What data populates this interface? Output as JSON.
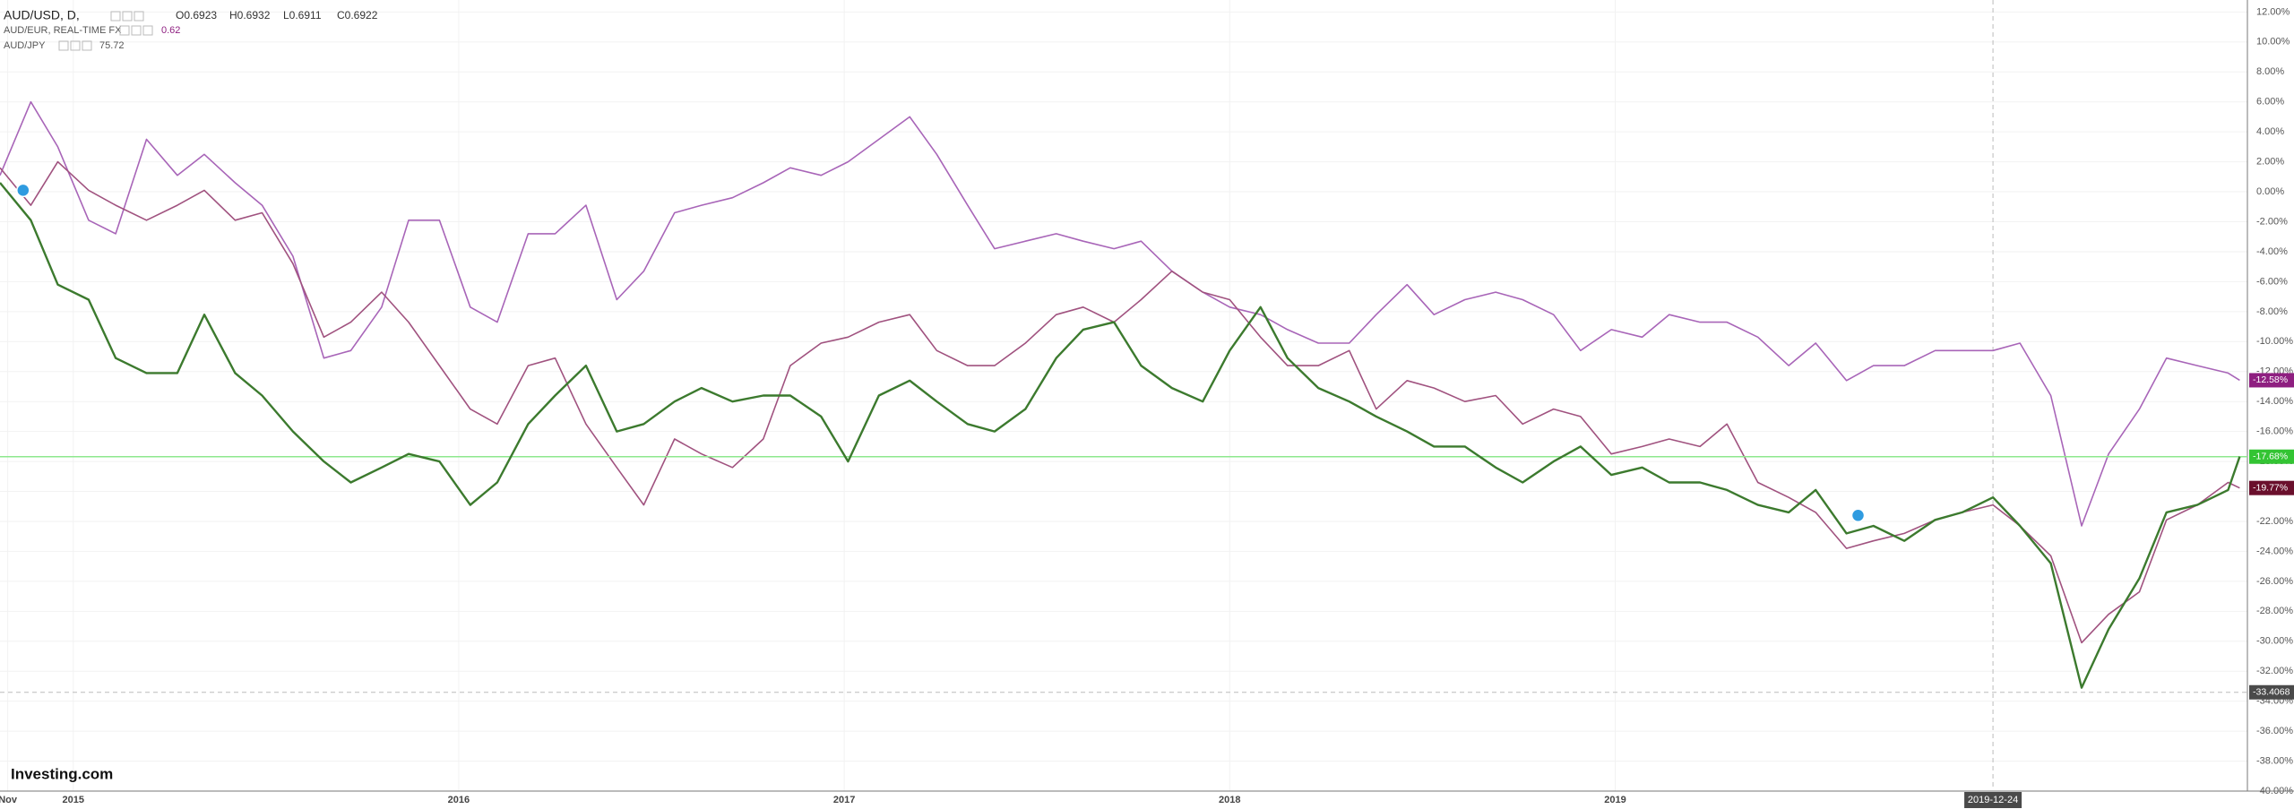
{
  "chart_data": {
    "type": "line",
    "header": {
      "ohlc": [
        "O0.6923",
        "H0.6932",
        "L0.6911",
        "C0.6922"
      ]
    },
    "logo": "Investing.com",
    "x": [
      2014.81,
      2014.89,
      2014.96,
      2015.04,
      2015.11,
      2015.19,
      2015.27,
      2015.34,
      2015.42,
      2015.49,
      2015.57,
      2015.65,
      2015.72,
      2015.8,
      2015.87,
      2015.95,
      2016.03,
      2016.1,
      2016.18,
      2016.25,
      2016.33,
      2016.41,
      2016.48,
      2016.56,
      2016.63,
      2016.71,
      2016.79,
      2016.86,
      2016.94,
      2017.01,
      2017.09,
      2017.17,
      2017.24,
      2017.32,
      2017.39,
      2017.47,
      2017.55,
      2017.62,
      2017.7,
      2017.77,
      2017.85,
      2017.93,
      2018.0,
      2018.08,
      2018.15,
      2018.23,
      2018.31,
      2018.38,
      2018.46,
      2018.53,
      2018.61,
      2018.69,
      2018.76,
      2018.84,
      2018.91,
      2018.99,
      2019.07,
      2019.14,
      2019.22,
      2019.29,
      2019.37,
      2019.45,
      2019.52,
      2019.6,
      2019.67,
      2019.75,
      2019.83,
      2019.9,
      2019.98,
      2020.05,
      2020.13,
      2020.21,
      2020.28,
      2020.36,
      2020.43,
      2020.51,
      2020.59,
      2020.62
    ],
    "series": [
      {
        "name": "AUD/USD, D,",
        "color": "#3c7a2e",
        "badge_color": "#33c433",
        "last_label": "-17.68%",
        "price_line": true,
        "values": [
          0.6,
          -1.9,
          -6.2,
          -7.2,
          -11.1,
          -12.1,
          -12.1,
          -8.2,
          -12.1,
          -13.6,
          -16.0,
          -18.0,
          -19.4,
          -18.4,
          -17.5,
          -18.0,
          -20.9,
          -19.4,
          -15.5,
          -13.6,
          -11.6,
          -16.0,
          -15.5,
          -14.0,
          -13.1,
          -14.0,
          -13.6,
          -13.6,
          -15.0,
          -18.0,
          -13.6,
          -12.6,
          -14.0,
          -15.5,
          -16.0,
          -14.5,
          -11.1,
          -9.2,
          -8.7,
          -11.6,
          -13.1,
          -14.0,
          -10.6,
          -7.7,
          -11.1,
          -13.1,
          -14.0,
          -15.0,
          -16.0,
          -17.0,
          -17.0,
          -18.4,
          -19.4,
          -18.0,
          -17.0,
          -18.9,
          -18.4,
          -19.4,
          -19.4,
          -19.9,
          -20.9,
          -21.4,
          -19.9,
          -22.8,
          -22.3,
          -23.3,
          -21.9,
          -21.4,
          -20.4,
          -22.3,
          -24.8,
          -33.1,
          -29.2,
          -25.8,
          -21.4,
          -20.9,
          -19.9,
          -17.68
        ]
      },
      {
        "name": "AUD/EUR, REAL-TIME FX",
        "color": "#a865b8",
        "badge_color": "#8e1f80",
        "last_label": "-12.58%",
        "last_price": 0.62,
        "values": [
          1.1,
          6.0,
          3.0,
          -1.9,
          -2.8,
          3.5,
          1.1,
          2.5,
          0.6,
          -0.9,
          -4.3,
          -11.1,
          -10.6,
          -7.7,
          -1.9,
          -1.9,
          -7.7,
          -8.7,
          -2.8,
          -2.8,
          -0.9,
          -7.2,
          -5.3,
          -1.4,
          -0.9,
          -0.4,
          0.6,
          1.6,
          1.1,
          2.0,
          3.5,
          5.0,
          2.5,
          -0.9,
          -3.8,
          -3.3,
          -2.8,
          -3.3,
          -3.8,
          -3.3,
          -5.3,
          -6.7,
          -7.7,
          -8.2,
          -9.2,
          -10.1,
          -10.1,
          -8.2,
          -6.2,
          -8.2,
          -7.2,
          -6.7,
          -7.2,
          -8.2,
          -10.6,
          -9.2,
          -9.7,
          -8.2,
          -8.7,
          -8.7,
          -9.7,
          -11.6,
          -10.1,
          -12.6,
          -11.6,
          -11.6,
          -10.6,
          -10.6,
          -10.6,
          -10.1,
          -13.6,
          -22.3,
          -17.5,
          -14.5,
          -11.1,
          -11.6,
          -12.1,
          -12.58
        ]
      },
      {
        "name": "AUD/JPY",
        "color": "#a0527f",
        "badge_color": "#6a0f2c",
        "last_label": "-19.77%",
        "last_price": 75.72,
        "values": [
          1.6,
          -0.9,
          2.0,
          0.1,
          -0.9,
          -1.9,
          -0.9,
          0.1,
          -1.9,
          -1.4,
          -4.8,
          -9.7,
          -8.7,
          -6.7,
          -8.7,
          -11.6,
          -14.5,
          -15.5,
          -11.6,
          -11.1,
          -15.5,
          -18.4,
          -20.9,
          -16.5,
          -17.5,
          -18.4,
          -16.5,
          -11.6,
          -10.1,
          -9.7,
          -8.7,
          -8.2,
          -10.6,
          -11.6,
          -11.6,
          -10.1,
          -8.2,
          -7.7,
          -8.7,
          -7.2,
          -5.3,
          -6.7,
          -7.2,
          -9.7,
          -11.6,
          -11.6,
          -10.6,
          -14.5,
          -12.6,
          -13.1,
          -14.0,
          -13.6,
          -15.5,
          -14.5,
          -15.0,
          -17.5,
          -17.0,
          -16.5,
          -17.0,
          -15.5,
          -19.4,
          -20.4,
          -21.4,
          -23.8,
          -23.3,
          -22.8,
          -21.9,
          -21.4,
          -20.9,
          -22.3,
          -24.3,
          -30.1,
          -28.2,
          -26.7,
          -21.9,
          -20.9,
          -19.4,
          -19.77
        ]
      }
    ],
    "xlim": [
      2014.81,
      2020.64
    ],
    "xticks": [
      {
        "value": 2014.83,
        "label": "Nov"
      },
      2015,
      2016,
      2017,
      2018,
      2019
    ],
    "ylim": [
      -40,
      12.8
    ],
    "yticks": [
      {
        "value": 12,
        "label": "12.00%"
      },
      {
        "value": 10,
        "label": "10.00%"
      },
      {
        "value": 8,
        "label": "8.00%"
      },
      {
        "value": 6,
        "label": "6.00%"
      },
      {
        "value": 4,
        "label": "4.00%"
      },
      {
        "value": 2,
        "label": "2.00%"
      },
      {
        "value": 0,
        "label": "0.00%"
      },
      {
        "value": -2,
        "label": "-2.00%"
      },
      {
        "value": -4,
        "label": "-4.00%"
      },
      {
        "value": -6,
        "label": "-6.00%"
      },
      {
        "value": -8,
        "label": "-8.00%"
      },
      {
        "value": -10,
        "label": "-10.00%"
      },
      {
        "value": -12,
        "label": "-12.00%"
      },
      {
        "value": -14,
        "label": "-14.00%"
      },
      {
        "value": -16,
        "label": "-16.00%"
      },
      {
        "value": -18,
        "label": "-18.00%"
      },
      {
        "value": -20,
        "label": "-20.00%"
      },
      {
        "value": -22,
        "label": "-22.00%"
      },
      {
        "value": -24,
        "label": "-24.00%"
      },
      {
        "value": -26,
        "label": "-26.00%"
      },
      {
        "value": -28,
        "label": "-28.00%"
      },
      {
        "value": -30,
        "label": "-30.00%"
      },
      {
        "value": -32,
        "label": "-32.00%"
      },
      {
        "value": -34,
        "label": "-34.00%"
      },
      {
        "value": -36,
        "label": "-36.00%"
      },
      {
        "value": -38,
        "label": "-38.00%"
      },
      {
        "value": -40,
        "label": "-40.00%"
      }
    ],
    "grid": true,
    "crosshair": {
      "x": {
        "value": 2019.98,
        "label": "2019-12-24"
      },
      "y": -33.4068
    }
  }
}
